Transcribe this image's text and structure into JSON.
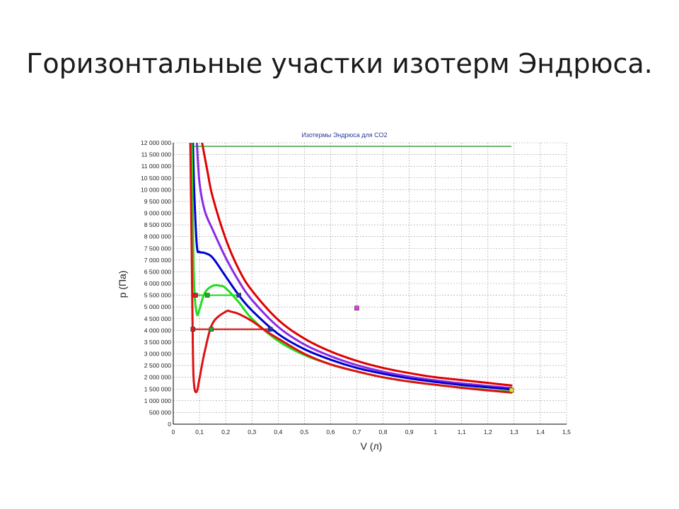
{
  "slide": {
    "title": "Горизонтальные участки изотерм Эндрюса."
  },
  "chart_data": {
    "type": "line",
    "title": "Изотермы Эндрюса для CO2",
    "xlabel": "V (л)",
    "ylabel": "p (Па)",
    "xlim": [
      0,
      1.5
    ],
    "ylim": [
      0,
      12000000
    ],
    "grid": true,
    "x_ticks": [
      "0",
      "0,1",
      "0,2",
      "0,3",
      "0,4",
      "0,5",
      "0,6",
      "0,7",
      "0,8",
      "0,9",
      "1",
      "1,1",
      "1,2",
      "1,3",
      "1,4",
      "1,5"
    ],
    "y_ticks": [
      "0",
      "500 000",
      "1 000 000",
      "1 500 000",
      "2 000 000",
      "2 500 000",
      "3 000 000",
      "3 500 000",
      "4 000 000",
      "4 500 000",
      "5 000 000",
      "5 500 000",
      "6 000 000",
      "6 500 000",
      "7 000 000",
      "7 500 000",
      "8 000 000",
      "8 500 000",
      "9 000 000",
      "9 500 000",
      "10 000 000",
      "10 500 000",
      "11 000 000",
      "11 500 000",
      "12 000 000"
    ],
    "series": [
      {
        "color": "#e00000",
        "x": [
          0.11,
          0.13,
          0.15,
          0.2,
          0.25,
          0.3,
          0.4,
          0.5,
          0.6,
          0.7,
          0.8,
          0.9,
          1.0,
          1.1,
          1.2,
          1.29
        ],
        "y": [
          12000000,
          10800000,
          9700000,
          7900000,
          6600000,
          5700000,
          4450000,
          3650000,
          3100000,
          2700000,
          2400000,
          2180000,
          2000000,
          1880000,
          1760000,
          1650000
        ]
      },
      {
        "color": "#8a2be2",
        "x": [
          0.09,
          0.1,
          0.12,
          0.15,
          0.2,
          0.25,
          0.3,
          0.4,
          0.5,
          0.6,
          0.7,
          0.8,
          0.9,
          1.0,
          1.1,
          1.2,
          1.29
        ],
        "y": [
          12000000,
          10300000,
          9100000,
          8300000,
          7100000,
          6100000,
          5300000,
          4150000,
          3400000,
          2900000,
          2520000,
          2240000,
          2030000,
          1870000,
          1740000,
          1630000,
          1540000
        ]
      },
      {
        "color": "#0000d0",
        "x": [
          0.075,
          0.08,
          0.09,
          0.1,
          0.12,
          0.15,
          0.2,
          0.25,
          0.3,
          0.4,
          0.5,
          0.6,
          0.7,
          0.8,
          0.9,
          1.0,
          1.1,
          1.2,
          1.29
        ],
        "y": [
          12000000,
          9900000,
          7600000,
          7350000,
          7300000,
          7100000,
          6300000,
          5500000,
          4850000,
          3850000,
          3200000,
          2750000,
          2400000,
          2150000,
          1950000,
          1800000,
          1670000,
          1570000,
          1480000
        ]
      },
      {
        "color": "#22dd22",
        "x": [
          0.07,
          0.075,
          0.08,
          0.09,
          0.1,
          0.12,
          0.15,
          0.18,
          0.2,
          0.25,
          0.3,
          0.4,
          0.5,
          0.6,
          0.7,
          0.8,
          0.9,
          1.0,
          1.1,
          1.2,
          1.29
        ],
        "y": [
          12000000,
          8400000,
          5800000,
          4700000,
          4900000,
          5600000,
          5900000,
          5900000,
          5800000,
          5200000,
          4500000,
          3550000,
          2950000,
          2550000,
          2250000,
          2000000,
          1820000,
          1680000,
          1560000,
          1460000,
          1380000
        ]
      },
      {
        "color": "#dd1111",
        "x": [
          0.065,
          0.07,
          0.075,
          0.08,
          0.09,
          0.1,
          0.12,
          0.15,
          0.2,
          0.22,
          0.25,
          0.3,
          0.35,
          0.4,
          0.5,
          0.6,
          0.7,
          0.8,
          0.9,
          1.0,
          1.1,
          1.2,
          1.29
        ],
        "y": [
          12000000,
          7500000,
          3000000,
          1600000,
          1400000,
          1950000,
          3100000,
          4300000,
          4800000,
          4800000,
          4700000,
          4400000,
          4000000,
          3650000,
          3000000,
          2550000,
          2250000,
          2000000,
          1820000,
          1680000,
          1550000,
          1440000,
          1350000
        ]
      }
    ],
    "horizontal_segments": [
      {
        "color": "#22dd22",
        "x": [
          0.085,
          0.25
        ],
        "y": 5500000
      },
      {
        "color": "#dd1111",
        "x": [
          0.075,
          0.37
        ],
        "y": 4050000
      },
      {
        "color": "#1a8a1a",
        "x": [
          0.07,
          1.29
        ],
        "y": 11850000
      }
    ],
    "markers": [
      {
        "color": "#cc2222",
        "x": 0.085,
        "y": 5500000
      },
      {
        "color": "#22aa22",
        "x": 0.13,
        "y": 5500000
      },
      {
        "color": "#2233bb",
        "x": 0.25,
        "y": 5500000
      },
      {
        "color": "#cc2222",
        "x": 0.075,
        "y": 4050000
      },
      {
        "color": "#22aa22",
        "x": 0.145,
        "y": 4050000
      },
      {
        "color": "#2233bb",
        "x": 0.37,
        "y": 4050000
      },
      {
        "color": "#ee33ee",
        "x": 0.7,
        "y": 4950000
      },
      {
        "color": "#f0e020",
        "x": 1.29,
        "y": 1450000
      }
    ]
  }
}
